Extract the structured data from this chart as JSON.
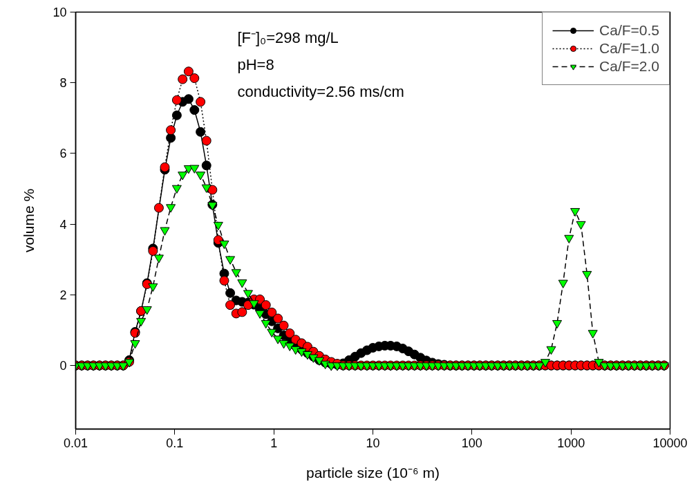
{
  "chart_data": {
    "type": "line",
    "xlabel": "particle size (10⁻⁶ m)",
    "ylabel": "volume %",
    "annotations": [
      "[F⁻]₀=298 mg/L",
      "pH=8",
      "conductivity=2.56 ms/cm"
    ],
    "log": "x",
    "grid": false,
    "legend": "top right",
    "xlim": [
      0.01,
      10000
    ],
    "xticks": [
      0.01,
      0.1,
      1,
      10,
      100,
      1000,
      10000
    ],
    "ylim": [
      -1.8,
      10
    ],
    "yticks": [
      0,
      2,
      4,
      6,
      8,
      10
    ],
    "x": [
      0.01,
      0.0115,
      0.0132,
      0.0151,
      0.0174,
      0.02,
      0.0229,
      0.0263,
      0.0302,
      0.0347,
      0.0398,
      0.0457,
      0.0525,
      0.0603,
      0.0692,
      0.0794,
      0.0912,
      0.105,
      0.12,
      0.138,
      0.158,
      0.182,
      0.209,
      0.24,
      0.275,
      0.316,
      0.363,
      0.417,
      0.479,
      0.55,
      0.631,
      0.724,
      0.832,
      0.955,
      1.1,
      1.26,
      1.45,
      1.66,
      1.91,
      2.19,
      2.51,
      2.88,
      3.31,
      3.8,
      4.37,
      5.01,
      5.75,
      6.61,
      7.59,
      8.71,
      10,
      11.5,
      13.2,
      15.1,
      17.4,
      20,
      22.9,
      26.3,
      30.2,
      34.7,
      39.8,
      45.7,
      52.5,
      60.3,
      69.2,
      79.4,
      91.2,
      105,
      120,
      138,
      158,
      182,
      209,
      240,
      275,
      316,
      363,
      417,
      479,
      550,
      631,
      724,
      832,
      955,
      1100,
      1260,
      1450,
      1660,
      1910,
      2190,
      2510,
      2880,
      3310,
      3800,
      4370,
      5010,
      5750,
      6610,
      7590,
      8710
    ],
    "series": [
      {
        "name": "Ca/F=0.5",
        "color": "#000000",
        "marker": "circle",
        "line_style": "solid",
        "values": [
          0,
          0,
          0,
          0,
          0,
          0,
          0,
          0,
          0,
          0.15,
          0.95,
          1.54,
          2.33,
          3.31,
          null,
          5.54,
          6.44,
          7.08,
          7.46,
          7.54,
          7.23,
          6.61,
          5.66,
          4.55,
          3.47,
          2.6,
          2.05,
          1.84,
          1.8,
          1.78,
          1.72,
          1.6,
          1.45,
          1.25,
          1.05,
          0.85,
          0.7,
          0.55,
          0.45,
          0.35,
          0.25,
          0.15,
          0.08,
          0.04,
          0.02,
          0.06,
          0.15,
          0.25,
          0.35,
          0.43,
          0.5,
          0.54,
          0.56,
          0.56,
          0.54,
          0.48,
          0.4,
          0.31,
          0.22,
          0.14,
          0.08,
          0.04,
          0.02,
          0,
          0,
          0,
          0,
          0,
          0,
          0,
          0,
          0,
          0,
          0,
          0,
          0,
          0,
          0,
          0,
          0,
          0,
          0,
          0,
          0,
          0,
          0,
          0,
          0,
          0,
          0,
          0,
          0,
          0,
          0,
          0,
          0,
          0,
          0,
          0,
          0
        ]
      },
      {
        "name": "Ca/F=1.0",
        "color": "#ff0000",
        "marker": "circle",
        "line_style": "dotted",
        "values": [
          0,
          0,
          0,
          0,
          0,
          0,
          0,
          0,
          0,
          0.1,
          0.92,
          1.54,
          2.3,
          3.24,
          4.46,
          5.61,
          6.66,
          7.51,
          8.1,
          8.32,
          8.13,
          7.46,
          6.36,
          4.97,
          3.55,
          2.4,
          1.71,
          1.47,
          1.51,
          1.71,
          1.87,
          1.87,
          1.71,
          1.5,
          1.33,
          1.13,
          0.91,
          0.73,
          0.63,
          0.53,
          0.39,
          0.27,
          0.17,
          0.1,
          0.05,
          0,
          0,
          0,
          0,
          0,
          0,
          0,
          0,
          0,
          0,
          0,
          0,
          0,
          0,
          0,
          0,
          0,
          0,
          0,
          0,
          0,
          0,
          0,
          0,
          0,
          0,
          0,
          0,
          0,
          0,
          0,
          0,
          0,
          0,
          0,
          0,
          0,
          0,
          0,
          0,
          0,
          0,
          0,
          0,
          0,
          0,
          0,
          0,
          0,
          0,
          0,
          0,
          0,
          0,
          0
        ]
      },
      {
        "name": "Ca/F=2.0",
        "color": "#00ff00",
        "marker": "triangle",
        "line_style": "dashed",
        "values": [
          0,
          0,
          0,
          0,
          0,
          0,
          0,
          0,
          0,
          0.1,
          0.63,
          1.26,
          1.59,
          2.24,
          3.05,
          3.83,
          4.48,
          5.02,
          5.4,
          5.58,
          5.59,
          5.4,
          5.04,
          4.54,
          3.98,
          3.45,
          3.01,
          2.64,
          2.35,
          2.05,
          1.76,
          1.48,
          1.2,
          0.95,
          0.76,
          0.63,
          0.56,
          0.46,
          0.4,
          0.32,
          0.23,
          0.15,
          0.05,
          0,
          0,
          0,
          0,
          0,
          0,
          0,
          0,
          0,
          0,
          0,
          0,
          0,
          0,
          0,
          0,
          0,
          0,
          0,
          0,
          0,
          0,
          0,
          0,
          0,
          0,
          0,
          0,
          0,
          0,
          0,
          0,
          0,
          0,
          0,
          0,
          0.1,
          0.46,
          1.2,
          2.34,
          3.61,
          4.37,
          4.0,
          2.59,
          0.92,
          0.1,
          0,
          0,
          0,
          0,
          0,
          0,
          0,
          0,
          0,
          0,
          0
        ]
      }
    ]
  }
}
